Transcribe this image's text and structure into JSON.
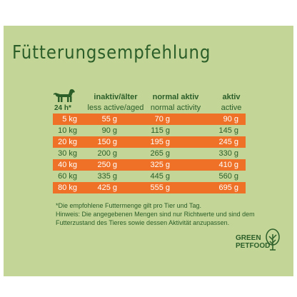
{
  "title": "Fütterungsempfehlung",
  "unit_label": "24 h*",
  "icon": "dog-icon",
  "columns": [
    {
      "de": "inaktiv/älter",
      "en": "less active/aged"
    },
    {
      "de": "normal aktiv",
      "en": "normal activity"
    },
    {
      "de": "aktiv",
      "en": "active"
    }
  ],
  "rows": [
    {
      "weight": "5 kg",
      "inactive": "55 g",
      "normal": "70 g",
      "active": "90 g"
    },
    {
      "weight": "10 kg",
      "inactive": "90 g",
      "normal": "115 g",
      "active": "145 g"
    },
    {
      "weight": "20 kg",
      "inactive": "150 g",
      "normal": "195 g",
      "active": "245 g"
    },
    {
      "weight": "30 kg",
      "inactive": "200 g",
      "normal": "265 g",
      "active": "330 g"
    },
    {
      "weight": "40 kg",
      "inactive": "250 g",
      "normal": "325 g",
      "active": "410 g"
    },
    {
      "weight": "60 kg",
      "inactive": "335 g",
      "normal": "445 g",
      "active": "560 g"
    },
    {
      "weight": "80 kg",
      "inactive": "425 g",
      "normal": "555 g",
      "active": "695 g"
    }
  ],
  "notes": [
    "*Die empfohlene Futtermenge gilt pro Tier und Tag.",
    "Hinweis: Die angegebenen Mengen sind nur Richtwerte und sind dem",
    "Futterzustand des Tieres sowie dessen Aktivität anzupassen."
  ],
  "logo": {
    "line1": "GREEN",
    "line2": "PETFOOD"
  },
  "colors": {
    "background": "#c3d597",
    "accent": "#ee7127",
    "text": "#2b5e29"
  }
}
